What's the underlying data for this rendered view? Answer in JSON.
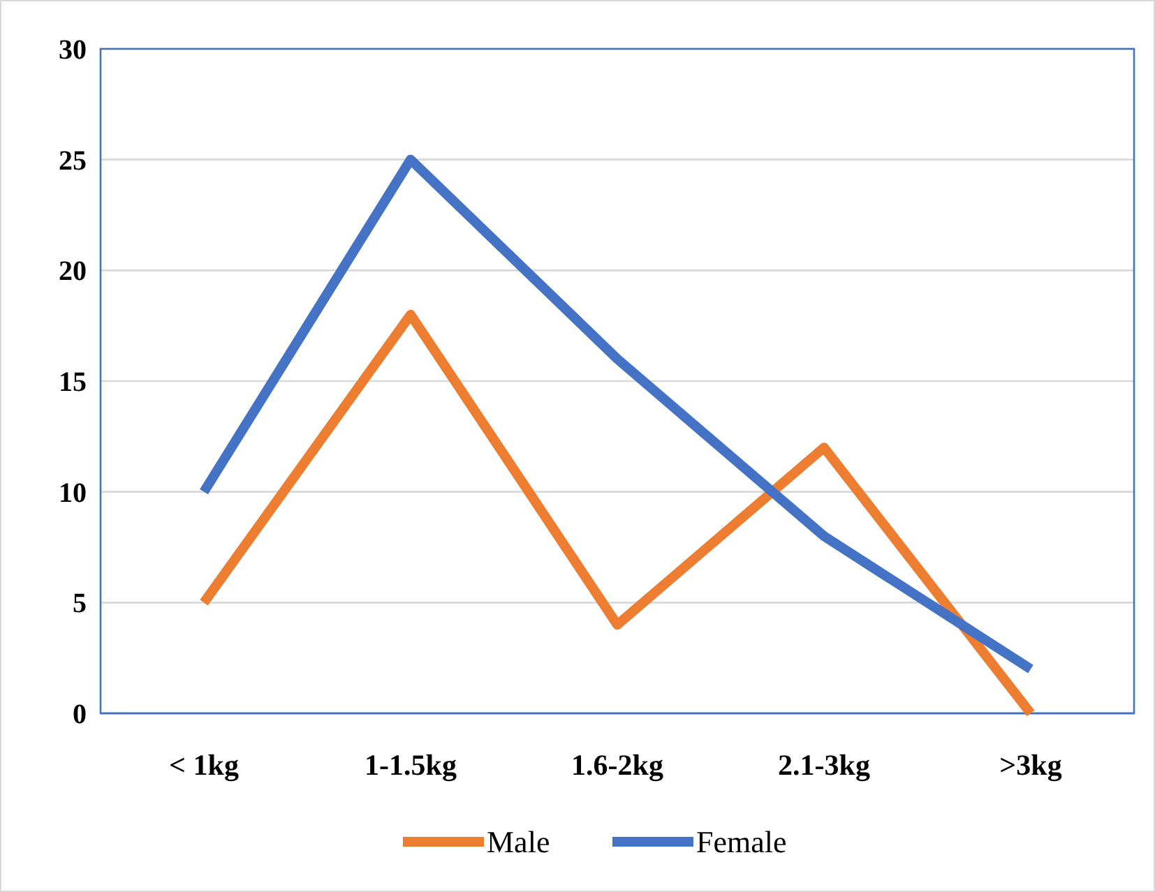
{
  "chart_data": {
    "type": "line",
    "categories": [
      "< 1kg",
      "1-1.5kg",
      "1.6-2kg",
      "2.1-3kg",
      ">3kg"
    ],
    "series": [
      {
        "name": "Male",
        "color": "#ed7d31",
        "values": [
          5,
          18,
          4,
          12,
          0
        ]
      },
      {
        "name": "Female",
        "color": "#4472c4",
        "values": [
          10,
          25,
          16,
          8,
          2
        ]
      }
    ],
    "ylim": [
      0,
      30
    ],
    "yticks": [
      0,
      5,
      10,
      15,
      20,
      25,
      30
    ],
    "grid": "y",
    "legend": "bottom",
    "marker": "none",
    "line_style": "solid"
  }
}
